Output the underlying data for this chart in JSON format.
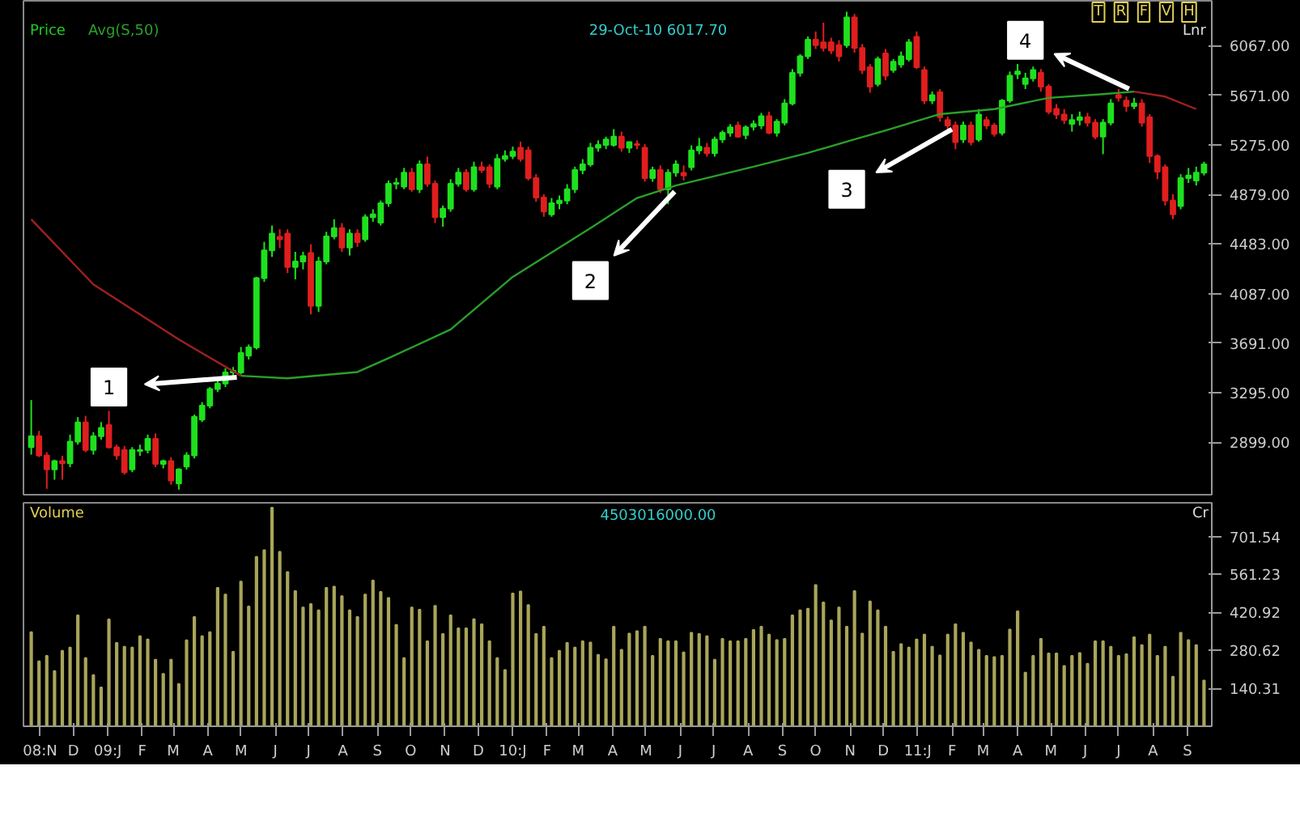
{
  "chart_data": [
    {
      "type": "candlestick",
      "tick_labels": "y",
      "xlim": [
        "2008-10-17",
        "2011-09-23"
      ],
      "ylim": [
        2480,
        6425
      ],
      "yticks": [
        {
          "value": 2899,
          "label": "2899.00"
        },
        {
          "value": 3295,
          "label": "3295.00"
        },
        {
          "value": 3691,
          "label": "3691.00"
        },
        {
          "value": 4087,
          "label": "4087.00"
        },
        {
          "value": 4483,
          "label": "4483.00"
        },
        {
          "value": 4879,
          "label": "4879.00"
        },
        {
          "value": 5275,
          "label": "5275.00"
        },
        {
          "value": 5671,
          "label": "5671.00"
        },
        {
          "value": 6067,
          "label": "6067.00"
        }
      ],
      "x": [
        "2008-10-24",
        "2008-10-31",
        "2008-11-07",
        "2008-11-14",
        "2008-11-21",
        "2008-11-28",
        "2008-12-05",
        "2008-12-12",
        "2008-12-19",
        "2008-12-26",
        "2009-01-02",
        "2009-01-09",
        "2009-01-16",
        "2009-01-23",
        "2009-01-30",
        "2009-02-06",
        "2009-02-13",
        "2009-02-20",
        "2009-02-27",
        "2009-03-06",
        "2009-03-13",
        "2009-03-20",
        "2009-03-27",
        "2009-04-03",
        "2009-04-10",
        "2009-04-17",
        "2009-04-24",
        "2009-05-01",
        "2009-05-08",
        "2009-05-15",
        "2009-05-22",
        "2009-05-29",
        "2009-06-05",
        "2009-06-12",
        "2009-06-19",
        "2009-06-26",
        "2009-07-03",
        "2009-07-10",
        "2009-07-17",
        "2009-07-24",
        "2009-07-31",
        "2009-08-07",
        "2009-08-14",
        "2009-08-21",
        "2009-08-28",
        "2009-09-04",
        "2009-09-11",
        "2009-09-18",
        "2009-09-25",
        "2009-10-02",
        "2009-10-09",
        "2009-10-16",
        "2009-10-23",
        "2009-10-30",
        "2009-11-06",
        "2009-11-13",
        "2009-11-20",
        "2009-11-27",
        "2009-12-04",
        "2009-12-11",
        "2009-12-18",
        "2009-12-25",
        "2010-01-01",
        "2010-01-08",
        "2010-01-15",
        "2010-01-22",
        "2010-01-29",
        "2010-02-05",
        "2010-02-12",
        "2010-02-19",
        "2010-02-26",
        "2010-03-05",
        "2010-03-12",
        "2010-03-19",
        "2010-03-26",
        "2010-04-02",
        "2010-04-09",
        "2010-04-16",
        "2010-04-23",
        "2010-04-30",
        "2010-05-07",
        "2010-05-14",
        "2010-05-21",
        "2010-05-28",
        "2010-06-04",
        "2010-06-11",
        "2010-06-18",
        "2010-06-25",
        "2010-07-02",
        "2010-07-09",
        "2010-07-16",
        "2010-07-23",
        "2010-07-30",
        "2010-08-06",
        "2010-08-13",
        "2010-08-20",
        "2010-08-27",
        "2010-09-03",
        "2010-09-10",
        "2010-09-17",
        "2010-09-24",
        "2010-10-01",
        "2010-10-08",
        "2010-10-15",
        "2010-10-22",
        "2010-10-29",
        "2010-11-05",
        "2010-11-12",
        "2010-11-19",
        "2010-11-26",
        "2010-12-03",
        "2010-12-10",
        "2010-12-17",
        "2010-12-24",
        "2010-12-31",
        "2011-01-07",
        "2011-01-14",
        "2011-01-21",
        "2011-01-28",
        "2011-02-04",
        "2011-02-11",
        "2011-02-18",
        "2011-02-25",
        "2011-03-04",
        "2011-03-11",
        "2011-03-18",
        "2011-03-25",
        "2011-04-01",
        "2011-04-08",
        "2011-04-15",
        "2011-04-22",
        "2011-04-29",
        "2011-05-06",
        "2011-05-13",
        "2011-05-20",
        "2011-05-27",
        "2011-06-03",
        "2011-06-10",
        "2011-06-17",
        "2011-06-24",
        "2011-07-01",
        "2011-07-08",
        "2011-07-15",
        "2011-07-22",
        "2011-07-29",
        "2011-08-05",
        "2011-08-12",
        "2011-08-19",
        "2011-08-26",
        "2011-09-02",
        "2011-09-09",
        "2011-09-16"
      ],
      "ohlc": [
        [
          2860,
          3236,
          2800,
          2948
        ],
        [
          2948,
          2990,
          2780,
          2793
        ],
        [
          2793,
          2820,
          2527,
          2682
        ],
        [
          2682,
          2760,
          2600,
          2748
        ],
        [
          2748,
          2790,
          2600,
          2730
        ],
        [
          2730,
          2960,
          2700,
          2903
        ],
        [
          2903,
          3100,
          2880,
          3058
        ],
        [
          3058,
          3110,
          2820,
          2837
        ],
        [
          2837,
          2980,
          2800,
          2948
        ],
        [
          2948,
          3060,
          2920,
          3014
        ],
        [
          3036,
          3150,
          2850,
          2859
        ],
        [
          2859,
          2880,
          2760,
          2793
        ],
        [
          2837,
          2870,
          2640,
          2660
        ],
        [
          2682,
          2860,
          2660,
          2837
        ],
        [
          2830,
          2880,
          2790,
          2837
        ],
        [
          2837,
          2960,
          2810,
          2926
        ],
        [
          2926,
          2970,
          2700,
          2726
        ],
        [
          2726,
          2760,
          2690,
          2748
        ],
        [
          2748,
          2780,
          2560,
          2593
        ],
        [
          2571,
          2690,
          2520,
          2682
        ],
        [
          2704,
          2820,
          2680,
          2793
        ],
        [
          2793,
          3120,
          2770,
          3103
        ],
        [
          3080,
          3220,
          3060,
          3191
        ],
        [
          3191,
          3340,
          3170,
          3324
        ],
        [
          3324,
          3400,
          3300,
          3368
        ],
        [
          3368,
          3490,
          3340,
          3457
        ],
        [
          3457,
          3500,
          3420,
          3470
        ],
        [
          3457,
          3660,
          3440,
          3612
        ],
        [
          3590,
          3680,
          3560,
          3657
        ],
        [
          3657,
          4220,
          3640,
          4210
        ],
        [
          4210,
          4500,
          4180,
          4432
        ],
        [
          4432,
          4630,
          4380,
          4565
        ],
        [
          4540,
          4600,
          4450,
          4520
        ],
        [
          4565,
          4600,
          4250,
          4299
        ],
        [
          4299,
          4420,
          4200,
          4343
        ],
        [
          4343,
          4420,
          4280,
          4387
        ],
        [
          4410,
          4480,
          3920,
          3989
        ],
        [
          3989,
          4380,
          3940,
          4343
        ],
        [
          4343,
          4580,
          4320,
          4543
        ],
        [
          4543,
          4680,
          4520,
          4609
        ],
        [
          4609,
          4650,
          4420,
          4454
        ],
        [
          4454,
          4600,
          4390,
          4565
        ],
        [
          4565,
          4600,
          4460,
          4498
        ],
        [
          4520,
          4720,
          4500,
          4697
        ],
        [
          4697,
          4760,
          4660,
          4720
        ],
        [
          4653,
          4830,
          4630,
          4808
        ],
        [
          4808,
          4990,
          4780,
          4963
        ],
        [
          4963,
          5010,
          4920,
          4970
        ],
        [
          4941,
          5090,
          4920,
          5052
        ],
        [
          5052,
          5090,
          4900,
          4919
        ],
        [
          4919,
          5150,
          4890,
          5118
        ],
        [
          5118,
          5180,
          4940,
          4963
        ],
        [
          4963,
          4990,
          4650,
          4697
        ],
        [
          4697,
          4790,
          4620,
          4764
        ],
        [
          4764,
          5000,
          4740,
          4963
        ],
        [
          4963,
          5090,
          4940,
          5052
        ],
        [
          5052,
          5080,
          4900,
          4919
        ],
        [
          4919,
          5140,
          4900,
          5096
        ],
        [
          5096,
          5140,
          5050,
          5074
        ],
        [
          5096,
          5120,
          4930,
          4963
        ],
        [
          4941,
          5200,
          4920,
          5163
        ],
        [
          5163,
          5230,
          5140,
          5185
        ],
        [
          5185,
          5260,
          5160,
          5220
        ],
        [
          5251,
          5300,
          5140,
          5163
        ],
        [
          5230,
          5260,
          4990,
          5008
        ],
        [
          5008,
          5040,
          4820,
          4853
        ],
        [
          4853,
          4880,
          4700,
          4742
        ],
        [
          4720,
          4850,
          4700,
          4808
        ],
        [
          4808,
          4870,
          4760,
          4830
        ],
        [
          4830,
          4960,
          4800,
          4919
        ],
        [
          4919,
          5100,
          4890,
          5074
        ],
        [
          5074,
          5160,
          5040,
          5118
        ],
        [
          5118,
          5290,
          5100,
          5251
        ],
        [
          5251,
          5310,
          5220,
          5274
        ],
        [
          5274,
          5340,
          5240,
          5318
        ],
        [
          5274,
          5400,
          5260,
          5340
        ],
        [
          5340,
          5380,
          5220,
          5251
        ],
        [
          5251,
          5300,
          5210,
          5296
        ],
        [
          5280,
          5310,
          5240,
          5274
        ],
        [
          5251,
          5280,
          4980,
          5008
        ],
        [
          5008,
          5100,
          4980,
          5074
        ],
        [
          5074,
          5110,
          4890,
          4919
        ],
        [
          4919,
          5080,
          4800,
          5052
        ],
        [
          5052,
          5150,
          5020,
          5118
        ],
        [
          5050,
          5110,
          4990,
          5030
        ],
        [
          5096,
          5270,
          5070,
          5230
        ],
        [
          5230,
          5330,
          5200,
          5260
        ],
        [
          5251,
          5290,
          5180,
          5207
        ],
        [
          5207,
          5340,
          5180,
          5318
        ],
        [
          5318,
          5390,
          5290,
          5371
        ],
        [
          5371,
          5440,
          5340,
          5415
        ],
        [
          5429,
          5460,
          5330,
          5340
        ],
        [
          5353,
          5430,
          5320,
          5415
        ],
        [
          5420,
          5470,
          5390,
          5440
        ],
        [
          5429,
          5530,
          5400,
          5504
        ],
        [
          5504,
          5540,
          5360,
          5371
        ],
        [
          5371,
          5480,
          5340,
          5460
        ],
        [
          5451,
          5640,
          5430,
          5606
        ],
        [
          5606,
          5880,
          5590,
          5849
        ],
        [
          5849,
          6000,
          5820,
          5982
        ],
        [
          5982,
          6140,
          5960,
          6115
        ],
        [
          6115,
          6180,
          6040,
          6071
        ],
        [
          6093,
          6250,
          6020,
          6049
        ],
        [
          6093,
          6130,
          6000,
          6027
        ],
        [
          6071,
          6110,
          5940,
          5982
        ],
        [
          6071,
          6338,
          6050,
          6292
        ],
        [
          6292,
          6320,
          6010,
          6049
        ],
        [
          6049,
          6080,
          5840,
          5872
        ],
        [
          5894,
          5920,
          5690,
          5739
        ],
        [
          5761,
          5980,
          5740,
          5960
        ],
        [
          6005,
          6040,
          5790,
          5827
        ],
        [
          5872,
          5960,
          5850,
          5938
        ],
        [
          5916,
          6020,
          5890,
          5982
        ],
        [
          5960,
          6120,
          5940,
          6093
        ],
        [
          6137,
          6180,
          5880,
          5894
        ],
        [
          5872,
          5900,
          5600,
          5628
        ],
        [
          5628,
          5700,
          5600,
          5672
        ],
        [
          5694,
          5720,
          5460,
          5495
        ],
        [
          5473,
          5500,
          5400,
          5429
        ],
        [
          5429,
          5460,
          5240,
          5296
        ],
        [
          5318,
          5460,
          5290,
          5429
        ],
        [
          5429,
          5460,
          5270,
          5296
        ],
        [
          5318,
          5560,
          5300,
          5517
        ],
        [
          5473,
          5500,
          5400,
          5429
        ],
        [
          5429,
          5450,
          5340,
          5362
        ],
        [
          5371,
          5640,
          5350,
          5628
        ],
        [
          5628,
          5860,
          5610,
          5827
        ],
        [
          5840,
          5920,
          5800,
          5860
        ],
        [
          5761,
          5850,
          5720,
          5805
        ],
        [
          5805,
          5900,
          5780,
          5872
        ],
        [
          5849,
          5880,
          5700,
          5739
        ],
        [
          5739,
          5760,
          5520,
          5539
        ],
        [
          5562,
          5600,
          5480,
          5517
        ],
        [
          5517,
          5560,
          5440,
          5473
        ],
        [
          5442,
          5520,
          5380,
          5473
        ],
        [
          5473,
          5540,
          5430,
          5495
        ],
        [
          5495,
          5530,
          5420,
          5451
        ],
        [
          5451,
          5480,
          5320,
          5340
        ],
        [
          5340,
          5480,
          5200,
          5451
        ],
        [
          5451,
          5640,
          5430,
          5606
        ],
        [
          5672,
          5720,
          5620,
          5650
        ],
        [
          5628,
          5660,
          5540,
          5584
        ],
        [
          5584,
          5650,
          5560,
          5606
        ],
        [
          5606,
          5640,
          5420,
          5451
        ],
        [
          5495,
          5520,
          5130,
          5185
        ],
        [
          5185,
          5200,
          5000,
          5060
        ],
        [
          5096,
          5120,
          4790,
          4830
        ],
        [
          4830,
          4880,
          4680,
          4720
        ],
        [
          4786,
          5040,
          4760,
          5008
        ],
        [
          5008,
          5090,
          4970,
          5030
        ],
        [
          4990,
          5100,
          4950,
          5052
        ],
        [
          5052,
          5140,
          5030,
          5118
        ]
      ],
      "colors": [
        "#1ee01e",
        "#e01e1e",
        "#e01e1e",
        "#1ee01e",
        "#e01e1e",
        "#1ee01e",
        "#1ee01e",
        "#e01e1e",
        "#1ee01e",
        "#1ee01e",
        "#e01e1e",
        "#e01e1e",
        "#e01e1e",
        "#1ee01e",
        "#1ee01e",
        "#1ee01e",
        "#e01e1e",
        "#1ee01e",
        "#e01e1e",
        "#1ee01e",
        "#1ee01e",
        "#1ee01e",
        "#1ee01e",
        "#1ee01e",
        "#1ee01e",
        "#1ee01e",
        "#1ee01e",
        "#1ee01e",
        "#1ee01e",
        "#1ee01e",
        "#1ee01e",
        "#1ee01e",
        "#e01e1e",
        "#e01e1e",
        "#1ee01e",
        "#1ee01e",
        "#e01e1e",
        "#1ee01e",
        "#1ee01e",
        "#1ee01e",
        "#e01e1e",
        "#1ee01e",
        "#e01e1e",
        "#1ee01e",
        "#1ee01e",
        "#1ee01e",
        "#1ee01e",
        "#1ee01e",
        "#1ee01e",
        "#e01e1e",
        "#1ee01e",
        "#e01e1e",
        "#e01e1e",
        "#1ee01e",
        "#1ee01e",
        "#1ee01e",
        "#e01e1e",
        "#1ee01e",
        "#e01e1e",
        "#e01e1e",
        "#1ee01e",
        "#1ee01e",
        "#1ee01e",
        "#e01e1e",
        "#e01e1e",
        "#e01e1e",
        "#e01e1e",
        "#1ee01e",
        "#1ee01e",
        "#1ee01e",
        "#1ee01e",
        "#1ee01e",
        "#1ee01e",
        "#1ee01e",
        "#1ee01e",
        "#1ee01e",
        "#e01e1e",
        "#1ee01e",
        "#e01e1e",
        "#e01e1e",
        "#1ee01e",
        "#e01e1e",
        "#1ee01e",
        "#1ee01e",
        "#e01e1e",
        "#1ee01e",
        "#1ee01e",
        "#e01e1e",
        "#1ee01e",
        "#1ee01e",
        "#1ee01e",
        "#e01e1e",
        "#1ee01e",
        "#1ee01e",
        "#1ee01e",
        "#e01e1e",
        "#1ee01e",
        "#1ee01e",
        "#1ee01e",
        "#1ee01e",
        "#1ee01e",
        "#e01e1e",
        "#e01e1e",
        "#e01e1e",
        "#e01e1e",
        "#1ee01e",
        "#e01e1e",
        "#e01e1e",
        "#e01e1e",
        "#1ee01e",
        "#e01e1e",
        "#1ee01e",
        "#1ee01e",
        "#1ee01e",
        "#e01e1e",
        "#e01e1e",
        "#1ee01e",
        "#e01e1e",
        "#e01e1e",
        "#e01e1e",
        "#1ee01e",
        "#e01e1e",
        "#1ee01e",
        "#e01e1e",
        "#e01e1e",
        "#1ee01e",
        "#1ee01e",
        "#1ee01e",
        "#1ee01e",
        "#1ee01e",
        "#e01e1e",
        "#e01e1e",
        "#e01e1e",
        "#e01e1e",
        "#1ee01e",
        "#1ee01e",
        "#e01e1e",
        "#e01e1e",
        "#1ee01e",
        "#1ee01e",
        "#e01e1e",
        "#e01e1e",
        "#1ee01e",
        "#e01e1e",
        "#e01e1e",
        "#e01e1e",
        "#e01e1e",
        "#e01e1e",
        "#1ee01e",
        "#1ee01e",
        "#1ee01e",
        "#1ee01e"
      ],
      "series": [
        {
          "type": "line",
          "color": "#a02020",
          "x": [
            "2008-10-24",
            "2008-12-19",
            "2009-03-06",
            "2009-05-01"
          ],
          "values": [
            4680,
            4160,
            3720,
            3430
          ]
        },
        {
          "type": "line",
          "name": "Avg(S,50)",
          "color": "#2aa02a",
          "x": [
            "2009-05-01",
            "2009-06-12",
            "2009-08-14",
            "2009-09-11",
            "2009-11-06",
            "2010-01-01",
            "2010-03-12",
            "2010-04-23",
            "2010-05-28",
            "2010-08-06",
            "2010-09-24",
            "2010-10-29",
            "2010-12-03",
            "2011-01-21",
            "2011-03-11",
            "2011-04-29",
            "2011-06-17",
            "2011-07-15"
          ],
          "values": [
            3430,
            3410,
            3460,
            3570,
            3800,
            4220,
            4610,
            4850,
            4950,
            5100,
            5210,
            5300,
            5390,
            5520,
            5560,
            5650,
            5680,
            5700
          ]
        },
        {
          "type": "line",
          "color": "#a02020",
          "x": [
            "2011-07-15",
            "2011-08-12",
            "2011-09-09"
          ],
          "values": [
            5700,
            5660,
            5560
          ]
        }
      ],
      "annotations": [
        "Price",
        "29-Oct-10 6017.70",
        "Lnr",
        "T",
        "R",
        "F",
        "V",
        "H",
        {
          "text": "1",
          "x": "2009-01-02",
          "y": 3340
        },
        {
          "text": "2",
          "x": "2010-03-12",
          "y": 4190
        },
        {
          "text": "3",
          "x": "2010-10-29",
          "y": 4920
        },
        {
          "text": "4",
          "x": "2011-04-08",
          "y": 6110
        }
      ]
    },
    {
      "type": "bar",
      "color": "#a9a55a",
      "xlim": [
        "2008-10-17",
        "2011-09-23"
      ],
      "ylim": [
        0,
        826
      ],
      "yticks": [
        140.31,
        280.62,
        420.92,
        561.23,
        701.54
      ],
      "xticks": [
        {
          "value": "2008-11-01",
          "label": "08:N"
        },
        {
          "value": "2008-12-01",
          "label": "D"
        },
        {
          "value": "2009-01-01",
          "label": "09:J"
        },
        {
          "value": "2009-02-01",
          "label": "F"
        },
        {
          "value": "2009-03-01",
          "label": "M"
        },
        {
          "value": "2009-04-01",
          "label": "A"
        },
        {
          "value": "2009-05-01",
          "label": "M"
        },
        {
          "value": "2009-06-01",
          "label": "J"
        },
        {
          "value": "2009-07-01",
          "label": "J"
        },
        {
          "value": "2009-08-01",
          "label": "A"
        },
        {
          "value": "2009-09-01",
          "label": "S"
        },
        {
          "value": "2009-10-01",
          "label": "O"
        },
        {
          "value": "2009-11-01",
          "label": "N"
        },
        {
          "value": "2009-12-01",
          "label": "D"
        },
        {
          "value": "2010-01-01",
          "label": "10:J"
        },
        {
          "value": "2010-02-01",
          "label": "F"
        },
        {
          "value": "2010-03-01",
          "label": "M"
        },
        {
          "value": "2010-04-01",
          "label": "A"
        },
        {
          "value": "2010-05-01",
          "label": "M"
        },
        {
          "value": "2010-06-01",
          "label": "J"
        },
        {
          "value": "2010-07-01",
          "label": "J"
        },
        {
          "value": "2010-08-01",
          "label": "A"
        },
        {
          "value": "2010-09-01",
          "label": "S"
        },
        {
          "value": "2010-10-01",
          "label": "O"
        },
        {
          "value": "2010-11-01",
          "label": "N"
        },
        {
          "value": "2010-12-01",
          "label": "D"
        },
        {
          "value": "2011-01-01",
          "label": "11:J"
        },
        {
          "value": "2011-02-01",
          "label": "F"
        },
        {
          "value": "2011-03-01",
          "label": "M"
        },
        {
          "value": "2011-04-01",
          "label": "A"
        },
        {
          "value": "2011-05-01",
          "label": "M"
        },
        {
          "value": "2011-06-01",
          "label": "J"
        },
        {
          "value": "2011-07-01",
          "label": "J"
        },
        {
          "value": "2011-08-01",
          "label": "A"
        },
        {
          "value": "2011-09-01",
          "label": "S"
        }
      ],
      "x": [
        "2008-10-24",
        "2008-10-31",
        "2008-11-07",
        "2008-11-14",
        "2008-11-21",
        "2008-11-28",
        "2008-12-05",
        "2008-12-12",
        "2008-12-19",
        "2008-12-26",
        "2009-01-02",
        "2009-01-09",
        "2009-01-16",
        "2009-01-23",
        "2009-01-30",
        "2009-02-06",
        "2009-02-13",
        "2009-02-20",
        "2009-02-27",
        "2009-03-06",
        "2009-03-13",
        "2009-03-20",
        "2009-03-27",
        "2009-04-03",
        "2009-04-10",
        "2009-04-17",
        "2009-04-24",
        "2009-05-01",
        "2009-05-08",
        "2009-05-15",
        "2009-05-22",
        "2009-05-29",
        "2009-06-05",
        "2009-06-12",
        "2009-06-19",
        "2009-06-26",
        "2009-07-03",
        "2009-07-10",
        "2009-07-17",
        "2009-07-24",
        "2009-07-31",
        "2009-08-07",
        "2009-08-14",
        "2009-08-21",
        "2009-08-28",
        "2009-09-04",
        "2009-09-11",
        "2009-09-18",
        "2009-09-25",
        "2009-10-02",
        "2009-10-09",
        "2009-10-16",
        "2009-10-23",
        "2009-10-30",
        "2009-11-06",
        "2009-11-13",
        "2009-11-20",
        "2009-11-27",
        "2009-12-04",
        "2009-12-11",
        "2009-12-18",
        "2009-12-25",
        "2010-01-01",
        "2010-01-08",
        "2010-01-15",
        "2010-01-22",
        "2010-01-29",
        "2010-02-05",
        "2010-02-12",
        "2010-02-19",
        "2010-02-26",
        "2010-03-05",
        "2010-03-12",
        "2010-03-19",
        "2010-03-26",
        "2010-04-02",
        "2010-04-09",
        "2010-04-16",
        "2010-04-23",
        "2010-04-30",
        "2010-05-07",
        "2010-05-14",
        "2010-05-21",
        "2010-05-28",
        "2010-06-04",
        "2010-06-11",
        "2010-06-18",
        "2010-06-25",
        "2010-07-02",
        "2010-07-09",
        "2010-07-16",
        "2010-07-23",
        "2010-07-30",
        "2010-08-06",
        "2010-08-13",
        "2010-08-20",
        "2010-08-27",
        "2010-09-03",
        "2010-09-10",
        "2010-09-17",
        "2010-09-24",
        "2010-10-01",
        "2010-10-08",
        "2010-10-15",
        "2010-10-22",
        "2010-10-29",
        "2010-11-05",
        "2010-11-12",
        "2010-11-19",
        "2010-11-26",
        "2010-12-03",
        "2010-12-10",
        "2010-12-17",
        "2010-12-24",
        "2010-12-31",
        "2011-01-07",
        "2011-01-14",
        "2011-01-21",
        "2011-01-28",
        "2011-02-04",
        "2011-02-11",
        "2011-02-18",
        "2011-02-25",
        "2011-03-04",
        "2011-03-11",
        "2011-03-18",
        "2011-03-25",
        "2011-04-01",
        "2011-04-08",
        "2011-04-15",
        "2011-04-22",
        "2011-04-29",
        "2011-05-06",
        "2011-05-13",
        "2011-05-20",
        "2011-05-27",
        "2011-06-03",
        "2011-06-10",
        "2011-06-17",
        "2011-06-24",
        "2011-07-01",
        "2011-07-08",
        "2011-07-15",
        "2011-07-22",
        "2011-07-29",
        "2011-08-05",
        "2011-08-12",
        "2011-08-19",
        "2011-08-26",
        "2011-09-02",
        "2011-09-09",
        "2011-09-16"
      ],
      "values": [
        348,
        240,
        260,
        204,
        279,
        291,
        410,
        252,
        189,
        144,
        395,
        308,
        294,
        291,
        333,
        321,
        246,
        194,
        246,
        156,
        318,
        404,
        333,
        348,
        512,
        487,
        275,
        535,
        443,
        626,
        651,
        808,
        645,
        570,
        500,
        439,
        452,
        429,
        512,
        516,
        481,
        429,
        404,
        487,
        539,
        497,
        474,
        375,
        252,
        439,
        431,
        314,
        445,
        341,
        410,
        362,
        362,
        396,
        377,
        314,
        252,
        208,
        491,
        498,
        448,
        341,
        368,
        252,
        279,
        308,
        291,
        314,
        310,
        264,
        248,
        368,
        283,
        343,
        352,
        368,
        260,
        323,
        314,
        314,
        273,
        346,
        341,
        333,
        246,
        323,
        314,
        314,
        323,
        356,
        368,
        339,
        319,
        323,
        410,
        429,
        435,
        522,
        458,
        391,
        439,
        368,
        500,
        343,
        462,
        429,
        368,
        275,
        304,
        291,
        321,
        339,
        294,
        262,
        339,
        377,
        346,
        310,
        283,
        260,
        256,
        260,
        358,
        425,
        198,
        260,
        323,
        269,
        269,
        223,
        260,
        271,
        231,
        314,
        314,
        294,
        260,
        266,
        329,
        300,
        339,
        260,
        294,
        183,
        346,
        319,
        300,
        169
      ],
      "annotations": [
        "Volume",
        "4503016000.00",
        "Cr"
      ]
    }
  ]
}
